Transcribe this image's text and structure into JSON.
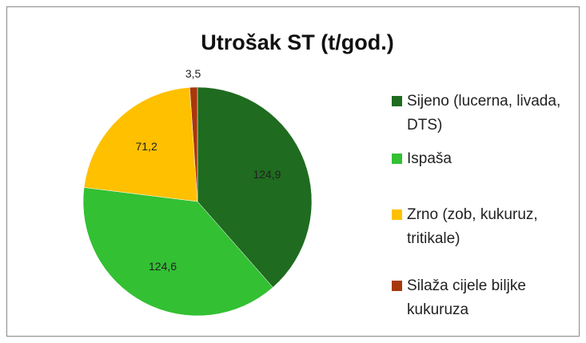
{
  "chart_data": {
    "type": "pie",
    "title": "Utrošak ST (t/god.)",
    "categories": [
      "Sijeno (lucerna, livada, DTS)",
      "Ispaša",
      "Zrno (zob, kukuruz, tritikale)",
      "Silaža cijele biljke kukuruza"
    ],
    "values": [
      124.9,
      124.6,
      71.2,
      3.5
    ],
    "value_labels": [
      "124,9",
      "124,6",
      "71,2",
      "3,5"
    ],
    "colors": [
      "#1f6b1f",
      "#33c033",
      "#ffc000",
      "#a8380c"
    ]
  }
}
